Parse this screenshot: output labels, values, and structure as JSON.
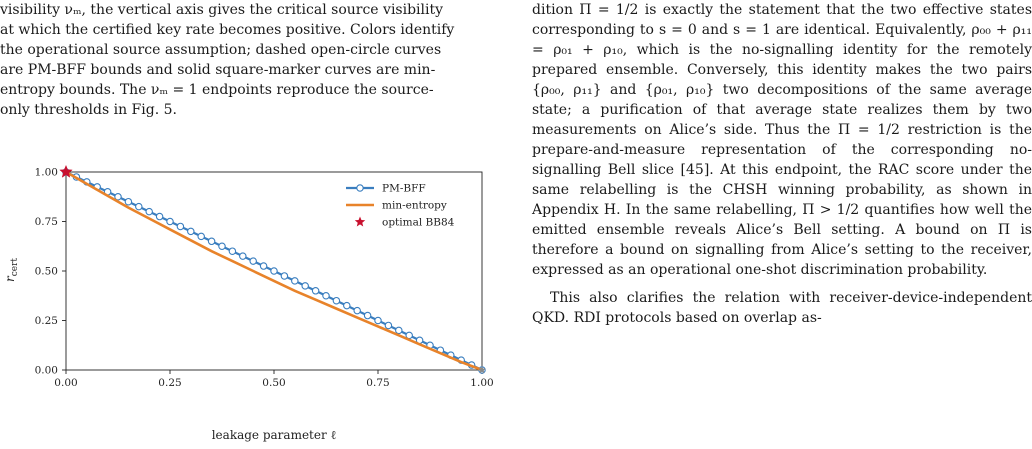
{
  "caption": {
    "lines": [
      "visibility νₘ, the vertical axis gives the critical source visibility",
      "at which the certified key rate becomes positive. Colors identify",
      "the operational source assumption; dashed open-circle curves",
      "are PM-BFF bounds and solid square-marker curves are min-",
      "entropy bounds. The νₘ = 1 endpoints reproduce the source-",
      "only thresholds in Fig. 5."
    ]
  },
  "body": {
    "p1": "dition Π = 1/2 is exactly the statement that the two effective states corresponding to s = 0 and s = 1 are identical. Equivalently, ρ₀₀ + ρ₁₁ = ρ₀₁ + ρ₁₀, which is the no-signalling identity for the remotely prepared ensemble. Conversely, this identity makes the two pairs {ρ₀₀, ρ₁₁} and {ρ₀₁, ρ₁₀} two decompositions of the same average state; a purification of that average state realizes them by two measurements on Alice’s side. Thus the Π = 1/2 restriction is the prepare-and-measure representation of the corresponding no-signalling Bell slice [45]. At this endpoint, the RAC score under the same relabelling is the CHSH winning probability, as shown in Appendix H. In the same relabelling, Π > 1/2 quantifies how well the emitted ensemble reveals Alice’s Bell setting. A bound on Π is therefore a bound on signalling from Alice’s setting to the receiver, expressed as an operational one-shot discrimination probability.",
    "p2": "This also clarifies the relation with receiver-device-independent QKD. RDI protocols based on overlap as-"
  },
  "chart_data": {
    "type": "line",
    "xlabel": "leakage parameter ℓ",
    "ylabel": "r_cert",
    "xlim": [
      0,
      1
    ],
    "ylim": [
      0,
      1
    ],
    "xticks": [
      "0.00",
      "0.25",
      "0.50",
      "0.75",
      "1.00"
    ],
    "yticks": [
      "0.00",
      "0.25",
      "0.50",
      "0.75",
      "1.00"
    ],
    "grid": false,
    "legend_position": "top-right",
    "series": [
      {
        "name": "PM-BFF",
        "color": "#3a7ebf",
        "style": "line-open-circle",
        "x": [
          0,
          0.025,
          0.05,
          0.075,
          0.1,
          0.125,
          0.15,
          0.175,
          0.2,
          0.225,
          0.25,
          0.275,
          0.3,
          0.325,
          0.35,
          0.375,
          0.4,
          0.425,
          0.45,
          0.475,
          0.5,
          0.525,
          0.55,
          0.575,
          0.6,
          0.625,
          0.65,
          0.675,
          0.7,
          0.725,
          0.75,
          0.775,
          0.8,
          0.825,
          0.85,
          0.875,
          0.9,
          0.925,
          0.95,
          0.975,
          1.0
        ],
        "y": [
          1.0,
          0.975,
          0.95,
          0.925,
          0.9,
          0.875,
          0.85,
          0.825,
          0.8,
          0.775,
          0.75,
          0.725,
          0.7,
          0.675,
          0.65,
          0.625,
          0.6,
          0.575,
          0.55,
          0.525,
          0.5,
          0.475,
          0.45,
          0.425,
          0.4,
          0.375,
          0.35,
          0.325,
          0.3,
          0.275,
          0.25,
          0.225,
          0.2,
          0.175,
          0.15,
          0.125,
          0.1,
          0.075,
          0.05,
          0.025,
          0.0
        ]
      },
      {
        "name": "min-entropy",
        "color": "#e8832a",
        "style": "line",
        "x": [
          0,
          0.05,
          0.1,
          0.15,
          0.2,
          0.25,
          0.3,
          0.35,
          0.4,
          0.45,
          0.5,
          0.55,
          0.6,
          0.65,
          0.7,
          0.75,
          0.8,
          0.85,
          0.9,
          0.95,
          1.0
        ],
        "y": [
          1.0,
          0.94,
          0.88,
          0.82,
          0.765,
          0.71,
          0.655,
          0.6,
          0.55,
          0.5,
          0.45,
          0.4,
          0.355,
          0.31,
          0.265,
          0.22,
          0.175,
          0.13,
          0.085,
          0.04,
          0.0
        ]
      },
      {
        "name": "optimal BB84",
        "color": "#c8102e",
        "style": "star",
        "x": [
          0
        ],
        "y": [
          1.0
        ]
      }
    ]
  }
}
